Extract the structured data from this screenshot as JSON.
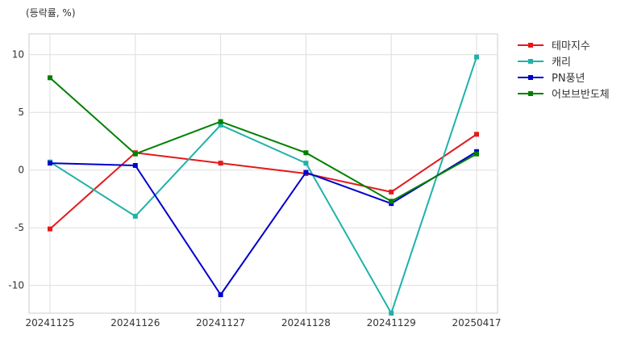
{
  "chart_data": {
    "type": "line",
    "title": "",
    "unit_label": "(등락률, %)",
    "xlabel": "",
    "ylabel": "",
    "categories": [
      "20241125",
      "20241126",
      "20241127",
      "20241128",
      "20241129",
      "20250417"
    ],
    "ylim": [
      -12.4,
      11.8
    ],
    "yticks": [
      10,
      5,
      0,
      -5,
      -10
    ],
    "grid": true,
    "legend_position": "outside-top-right",
    "marker": "square",
    "series": [
      {
        "name": "테마지수",
        "color": "#e41a1c",
        "values": [
          -5.1,
          1.5,
          0.6,
          -0.3,
          -1.9,
          3.1
        ]
      },
      {
        "name": "캐리",
        "color": "#20b2aa",
        "values": [
          0.7,
          -4.0,
          3.9,
          0.6,
          -12.4,
          9.8
        ]
      },
      {
        "name": "PN풍년",
        "color": "#0000cd",
        "values": [
          0.6,
          0.4,
          -10.8,
          -0.2,
          -2.9,
          1.6
        ]
      },
      {
        "name": "어보브반도체",
        "color": "#008000",
        "values": [
          8.0,
          1.4,
          4.2,
          1.5,
          -2.7,
          1.4
        ]
      }
    ]
  }
}
